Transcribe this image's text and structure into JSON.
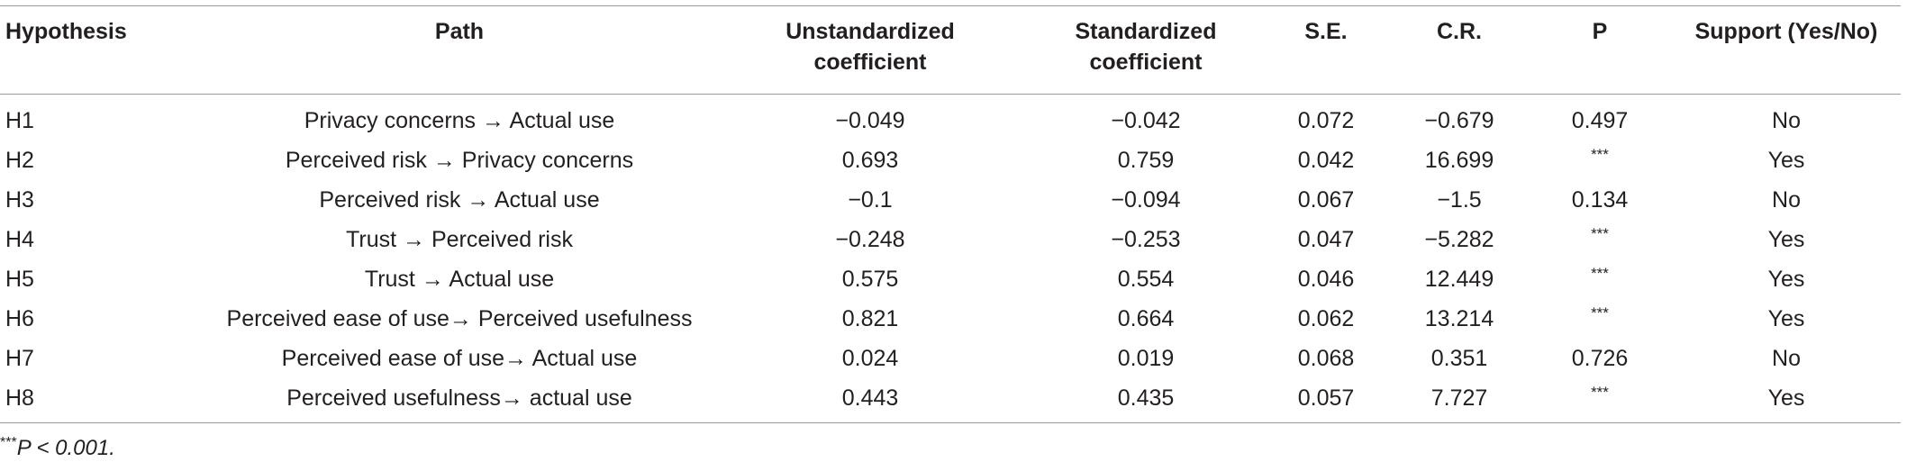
{
  "table": {
    "headers": [
      {
        "lines": [
          "Hypothesis"
        ]
      },
      {
        "lines": [
          "Path"
        ]
      },
      {
        "lines": [
          "Unstandardized",
          "coefficient"
        ]
      },
      {
        "lines": [
          "Standardized",
          "coefficient"
        ]
      },
      {
        "lines": [
          "S.E."
        ]
      },
      {
        "lines": [
          "C.R."
        ]
      },
      {
        "lines": [
          "P"
        ]
      },
      {
        "lines": [
          "Support (Yes/No)"
        ]
      }
    ],
    "rows": [
      [
        "H1",
        "Privacy concerns → Actual use",
        "−0.049",
        "−0.042",
        "0.072",
        "−0.679",
        "0.497",
        "No"
      ],
      [
        "H2",
        "Perceived risk → Privacy concerns",
        "0.693",
        "0.759",
        "0.042",
        "16.699",
        "***",
        "Yes"
      ],
      [
        "H3",
        "Perceived risk → Actual use",
        "−0.1",
        "−0.094",
        "0.067",
        "−1.5",
        "0.134",
        "No"
      ],
      [
        "H4",
        "Trust → Perceived risk",
        "−0.248",
        "−0.253",
        "0.047",
        "−5.282",
        "***",
        "Yes"
      ],
      [
        "H5",
        "Trust → Actual use",
        "0.575",
        "0.554",
        "0.046",
        "12.449",
        "***",
        "Yes"
      ],
      [
        "H6",
        "Perceived ease of use→ Perceived usefulness",
        "0.821",
        "0.664",
        "0.062",
        "13.214",
        "***",
        "Yes"
      ],
      [
        "H7",
        "Perceived ease of use→ Actual use",
        "0.024",
        "0.019",
        "0.068",
        "0.351",
        "0.726",
        "No"
      ],
      [
        "H8",
        "Perceived usefulness→ actual use",
        "0.443",
        "0.435",
        "0.057",
        "7.727",
        "***",
        "Yes"
      ]
    ]
  },
  "footnote": {
    "stars": "***",
    "text": "P < 0.001."
  }
}
